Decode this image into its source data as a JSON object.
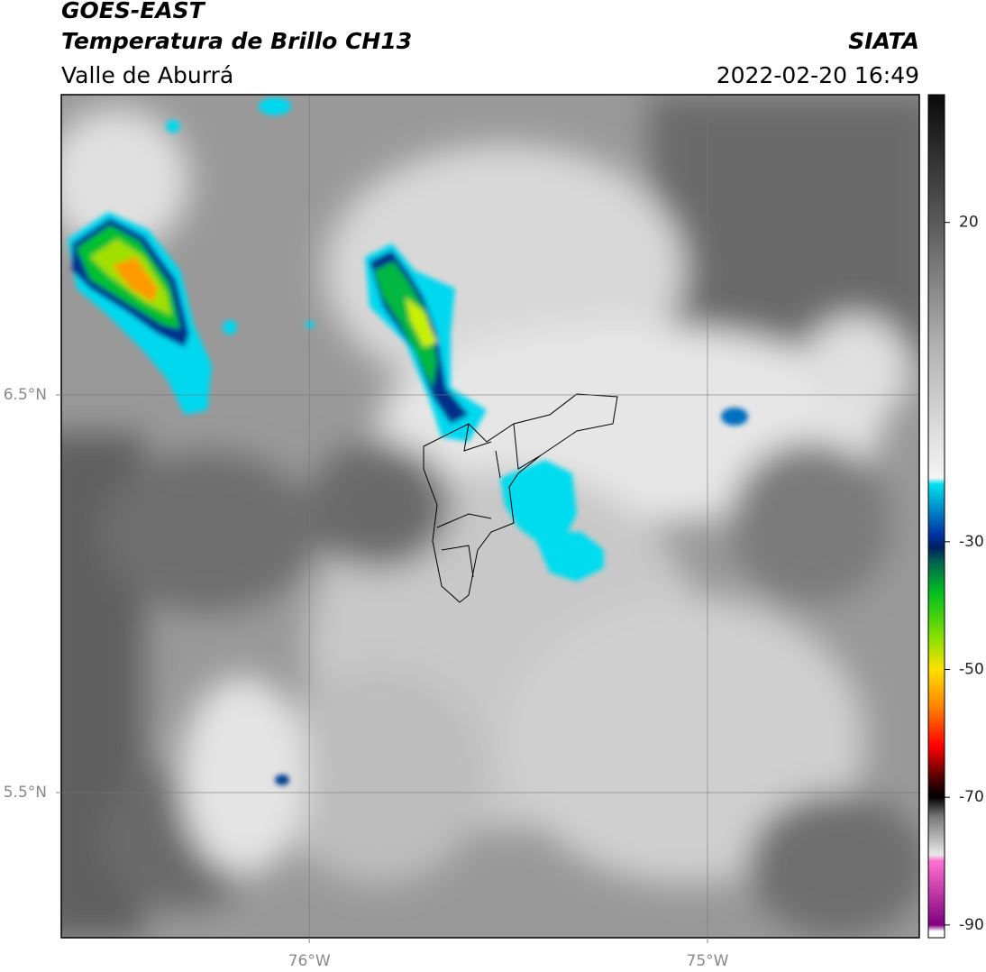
{
  "header": {
    "title": "GOES-EAST",
    "subtitle": "Temperatura de Brillo CH13",
    "region": "Valle de Aburrá",
    "source": "SIATA",
    "timestamp": "2022-02-20 16:49"
  },
  "map": {
    "xlim": [
      -76.623,
      -74.468
    ],
    "ylim": [
      5.135,
      7.255
    ],
    "xticks": [
      {
        "value": -76,
        "label": "76°W"
      },
      {
        "value": -75,
        "label": "75°W"
      }
    ],
    "yticks": [
      {
        "value": 6.5,
        "label": "6.5°N"
      },
      {
        "value": 5.5,
        "label": "5.5°N"
      }
    ],
    "grid": true
  },
  "colorbar": {
    "lim": [
      -92,
      40
    ],
    "ticks": [
      20,
      -30,
      -50,
      -70,
      -90
    ],
    "stops": [
      {
        "value": 40,
        "color": "#0a0a0a"
      },
      {
        "value": 20,
        "color": "#5a5a5a"
      },
      {
        "value": 0,
        "color": "#b4b4b4"
      },
      {
        "value": -20,
        "color": "#f4f4f4"
      },
      {
        "value": -21,
        "color": "#00e0f0"
      },
      {
        "value": -29,
        "color": "#0030a0"
      },
      {
        "value": -31,
        "color": "#002060"
      },
      {
        "value": -33,
        "color": "#006050"
      },
      {
        "value": -38,
        "color": "#00c020"
      },
      {
        "value": -45,
        "color": "#88e000"
      },
      {
        "value": -50,
        "color": "#ffe000"
      },
      {
        "value": -56,
        "color": "#ff8000"
      },
      {
        "value": -62,
        "color": "#ff0000"
      },
      {
        "value": -67,
        "color": "#500000"
      },
      {
        "value": -70,
        "color": "#000000"
      },
      {
        "value": -73,
        "color": "#777777"
      },
      {
        "value": -79,
        "color": "#e8e8e8"
      },
      {
        "value": -80,
        "color": "#ff70d0"
      },
      {
        "value": -90,
        "color": "#800080"
      },
      {
        "value": -91,
        "color": "#ffffff"
      }
    ]
  }
}
